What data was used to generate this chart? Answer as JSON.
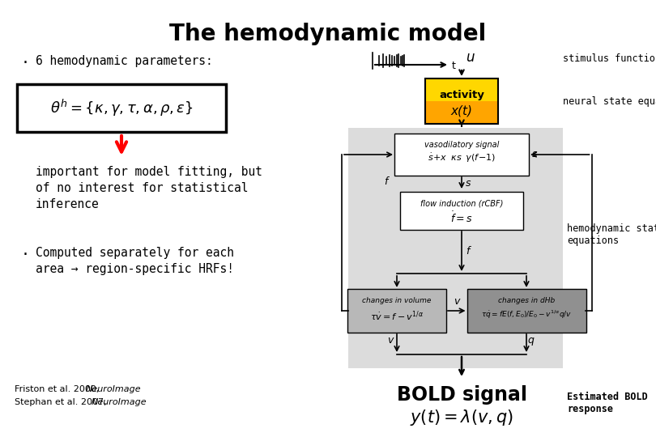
{
  "title": "The hemodynamic model",
  "bg_color": "#ffffff",
  "bullet1": "6 hemodynamic parameters:",
  "equation": "$\\theta^h = \\{\\kappa, \\gamma, \\tau, \\alpha, \\rho, \\varepsilon\\}$",
  "important_text": "important for model fitting, but\nof no interest for statistical\ninference",
  "bullet2": "Computed separately for each\narea → region-specific HRFs!",
  "ref1a": "Friston et al. 2000, ",
  "ref1b": "NeuroImage",
  "ref2a": "Stephan et al. 2007, ",
  "ref2b": "NeuroImage",
  "stimulus_label": "stimulus functions",
  "neural_label": "neural state equation",
  "hemo_label": "hemodynamic state\nequations",
  "estimated_label": "Estimated BOLD\nresponse",
  "u_label": "u",
  "t_label": "t",
  "activity_top": "activity",
  "activity_bot": "x(t)",
  "gray_box_color": "#DCDCDC",
  "vaso_title": "vasodilatory signal",
  "vaso_eq": "$\\dot{s}\\!+\\!x\\;\\;\\kappa s\\;\\;\\gamma(f\\!-\\!1)$",
  "flow_title": "flow induction (rCBF)",
  "flow_eq": "$\\dot{f} = s$",
  "vol_title": "changes in volume",
  "vol_eq": "$\\tau\\dot{v} = f - v^{1/\\alpha}$",
  "dHb_title": "changes in dHb",
  "dHb_eq": "$\\tau\\dot{q} = f E(f,E_0)/E_0 - v^{1/\\alpha}q/v$",
  "bold_text": "BOLD signal",
  "bold_eq": "$y(t) = \\lambda(v,q)$",
  "s_label": "s",
  "f_label": "f",
  "v_label": "v",
  "q_label": "q"
}
